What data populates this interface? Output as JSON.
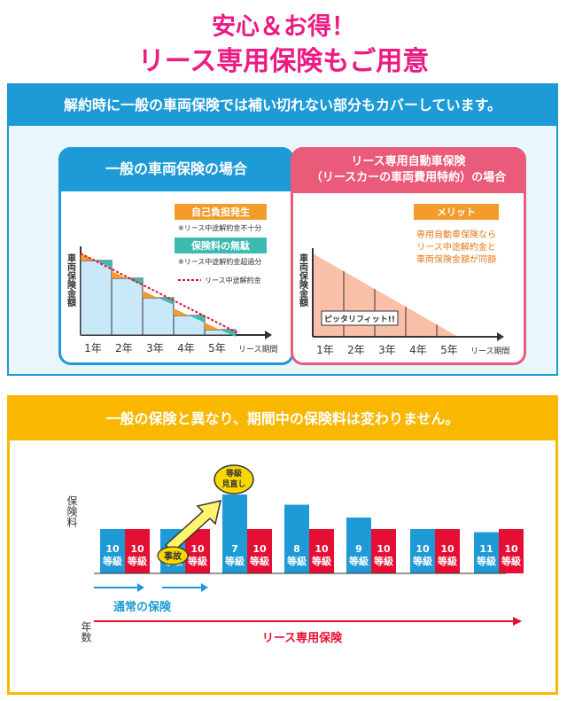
{
  "header": {
    "title_line1": "安心＆お得！",
    "title_line2": "リース専用保険もご用意"
  },
  "section1": {
    "heading": "解約時に一般の車両保険では補い切れない部分もカバーしています。",
    "left_card": {
      "title": "一般の車両保険の場合",
      "y_axis_label": "車両保険金額",
      "badge1": "自己負担発生",
      "note1": "※リース中途解約金不十分",
      "badge2": "保険料の無駄",
      "note2": "※リース中途解約金超過分",
      "legend": "リース中途解約金",
      "years": [
        "1年",
        "2年",
        "3年",
        "4年",
        "5年"
      ],
      "x_axis_label": "リース期間"
    },
    "right_card": {
      "title_line1": "リース専用自動車保険",
      "title_line2": "（リースカーの車両費用特約）の場合",
      "y_axis_label": "車両保険金額",
      "badge": "メリット",
      "merit_line1": "専用自動車保険なら",
      "merit_line2": "リース中途解約金と",
      "merit_line3": "車両保険金額が同額",
      "fit_label": "ピッタリフィット!!",
      "years": [
        "1年",
        "2年",
        "3年",
        "4年",
        "5年"
      ],
      "x_axis_label": "リース期間"
    }
  },
  "section2": {
    "heading": "一般の保険と異なり、期間中の保険料は変わりません。",
    "y_axis_label": "保険料",
    "x_axis_label": "年数",
    "bubble_line1": "等級",
    "bubble_line2": "見直し",
    "accident_label": "事故",
    "normal_label": "通常の保険",
    "lease_label": "リース専用保険",
    "grade_suffix": "等級",
    "colors": {
      "normal": "#1e9ad6",
      "lease": "#e60f33",
      "accent": "#f9b700",
      "pink": "#ec1a83"
    },
    "bars": [
      {
        "normal_grade": "10",
        "normal_level": 1,
        "lease_grade": "10",
        "lease_level": 1
      },
      {
        "normal_grade": "10",
        "normal_level": 1,
        "lease_grade": "10",
        "lease_level": 1
      },
      {
        "normal_grade": "7",
        "normal_level": 1.78,
        "lease_grade": "10",
        "lease_level": 1
      },
      {
        "normal_grade": "8",
        "normal_level": 1.55,
        "lease_grade": "10",
        "lease_level": 1
      },
      {
        "normal_grade": "9",
        "normal_level": 1.26,
        "lease_grade": "10",
        "lease_level": 1
      },
      {
        "normal_grade": "10",
        "normal_level": 1,
        "lease_grade": "10",
        "lease_level": 1
      },
      {
        "normal_grade": "11",
        "normal_level": 0.93,
        "lease_grade": "10",
        "lease_level": 1
      }
    ]
  }
}
